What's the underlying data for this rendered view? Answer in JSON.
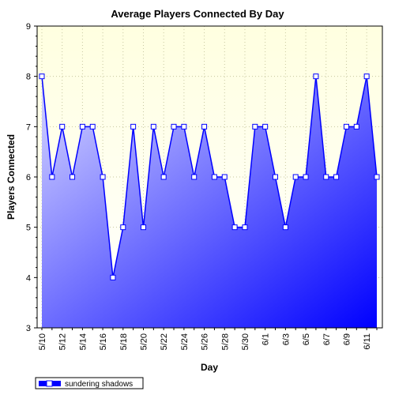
{
  "chart_data": {
    "type": "area",
    "title": "Average Players Connected By Day",
    "xlabel": "Day",
    "ylabel": "Players Connected",
    "ylim": [
      3,
      9
    ],
    "yticks": [
      3,
      4,
      5,
      6,
      7,
      8,
      9
    ],
    "grid": true,
    "legend_position": "bottom-left",
    "colors": {
      "plot_background_top": "#ffffe0",
      "plot_background_bottom": "#ffffff",
      "area_light": "#d8d8ff",
      "area_dark": "#0000ff",
      "line": "#0000ff",
      "grid": "#c8c8a0"
    },
    "x": [
      "5/10",
      "5/11",
      "5/12",
      "5/13",
      "5/14",
      "5/15",
      "5/16",
      "5/17",
      "5/18",
      "5/19",
      "5/20",
      "5/21",
      "5/22",
      "5/23",
      "5/24",
      "5/25",
      "5/26",
      "5/27",
      "5/28",
      "5/29",
      "5/30",
      "5/31",
      "6/1",
      "6/2",
      "6/3",
      "6/4",
      "6/5",
      "6/6",
      "6/7",
      "6/8",
      "6/9",
      "6/10",
      "6/11",
      "6/12"
    ],
    "x_tick_labels": [
      "5/10",
      "5/12",
      "5/14",
      "5/16",
      "5/18",
      "5/20",
      "5/22",
      "5/24",
      "5/26",
      "5/28",
      "5/30",
      "6/1",
      "6/3",
      "6/5",
      "6/7",
      "6/9",
      "6/11"
    ],
    "series": [
      {
        "name": "sundering shadows",
        "values": [
          8,
          6,
          7,
          6,
          7,
          7,
          6,
          4,
          5,
          7,
          5,
          7,
          6,
          7,
          7,
          6,
          7,
          6,
          6,
          5,
          5,
          7,
          7,
          6,
          5,
          6,
          6,
          8,
          6,
          6,
          7,
          7,
          8,
          6
        ]
      }
    ]
  }
}
